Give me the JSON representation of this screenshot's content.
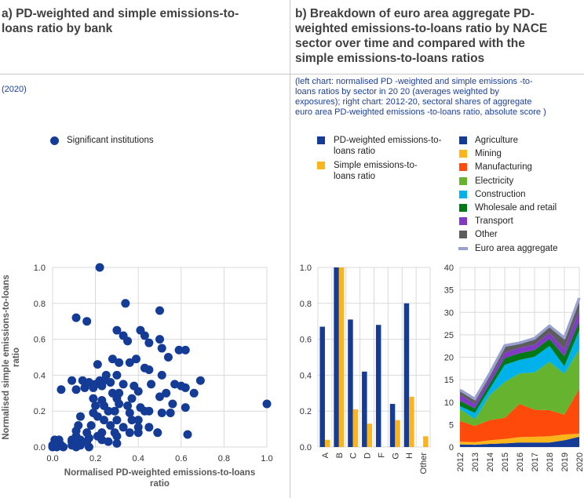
{
  "panel_a": {
    "title_line1": "a) PD-weighted and simple emissions-to-",
    "title_line2": "loans ratio by bank",
    "note": "(2020)"
  },
  "panel_b": {
    "title_line1": "b) Breakdown of euro area aggregate PD-",
    "title_line2": "weighted emissions-to-loans ratio by NACE",
    "title_line3": "sector over time and compared with the",
    "title_line4": "simple emissions-to-loans ratios",
    "note_line1": "(left chart: normalised PD -weighted and simple emissions -to-",
    "note_line2": "loans ratios by sector in 20 20 (averages weighted by",
    "note_line3": "exposures); right chart: 2012-20, sectoral shares of aggregate",
    "note_line4": "euro area PD-weighted emissions -to-loans ratio, absolute score )"
  },
  "colors": {
    "navy": "#143c96",
    "gold": "#fbb41a",
    "agriculture": "#143c96",
    "mining": "#fbb41a",
    "manufacturing": "#fe4b0c",
    "electricity": "#65b32e",
    "construction": "#00b1ea",
    "wholesale": "#007816",
    "transport": "#8139c6",
    "other": "#5c5c5c",
    "aggregate": "#98a1d0"
  },
  "chart_data": [
    {
      "type": "scatter",
      "xlabel_line1": "Normalised PD-weighted emissions-to-loans",
      "xlabel_line2": "ratio",
      "ylabel_line1": "Normalised simple emissions-to-loans",
      "ylabel_line2": "ratio",
      "xlim": [
        0,
        1
      ],
      "ylim": [
        0,
        1
      ],
      "xticks": [
        "0.0",
        "0.2",
        "0.4",
        "0.6",
        "0.8",
        "1.0"
      ],
      "yticks": [
        "0.0",
        "0.2",
        "0.4",
        "0.6",
        "0.8",
        "1.0"
      ],
      "grid": true,
      "legend": "top-left",
      "series": [
        {
          "name": "Significant institutions",
          "points": [
            [
              0.22,
              1.0
            ],
            [
              0.34,
              0.8
            ],
            [
              0.11,
              0.72
            ],
            [
              0.16,
              0.7
            ],
            [
              0.5,
              0.76
            ],
            [
              0.41,
              0.65
            ],
            [
              0.3,
              0.65
            ],
            [
              0.43,
              0.62
            ],
            [
              0.33,
              0.62
            ],
            [
              0.35,
              0.59
            ],
            [
              0.45,
              0.58
            ],
            [
              0.5,
              0.6
            ],
            [
              0.51,
              0.55
            ],
            [
              0.59,
              0.54
            ],
            [
              0.62,
              0.54
            ],
            [
              0.28,
              0.49
            ],
            [
              0.39,
              0.49
            ],
            [
              0.54,
              0.5
            ],
            [
              0.31,
              0.47
            ],
            [
              0.21,
              0.46
            ],
            [
              0.36,
              0.47
            ],
            [
              0.43,
              0.44
            ],
            [
              0.45,
              0.43
            ],
            [
              0.25,
              0.4
            ],
            [
              0.3,
              0.4
            ],
            [
              0.51,
              0.4
            ],
            [
              0.09,
              0.37
            ],
            [
              0.14,
              0.37
            ],
            [
              0.17,
              0.36
            ],
            [
              0.2,
              0.35
            ],
            [
              0.22,
              0.37
            ],
            [
              0.24,
              0.37
            ],
            [
              0.27,
              0.36
            ],
            [
              0.33,
              0.35
            ],
            [
              0.38,
              0.34
            ],
            [
              0.46,
              0.35
            ],
            [
              0.57,
              0.35
            ],
            [
              0.6,
              0.34
            ],
            [
              0.62,
              0.33
            ],
            [
              0.69,
              0.37
            ],
            [
              0.04,
              0.32
            ],
            [
              0.11,
              0.32
            ],
            [
              0.15,
              0.33
            ],
            [
              0.19,
              0.33
            ],
            [
              0.23,
              0.34
            ],
            [
              0.28,
              0.3
            ],
            [
              0.31,
              0.3
            ],
            [
              0.4,
              0.31
            ],
            [
              0.53,
              0.3
            ],
            [
              0.66,
              0.3
            ],
            [
              0.19,
              0.27
            ],
            [
              0.23,
              0.26
            ],
            [
              0.3,
              0.27
            ],
            [
              0.37,
              0.27
            ],
            [
              0.5,
              0.28
            ],
            [
              0.2,
              0.23
            ],
            [
              0.24,
              0.23
            ],
            [
              0.31,
              0.24
            ],
            [
              0.35,
              0.23
            ],
            [
              0.41,
              0.22
            ],
            [
              0.56,
              0.24
            ],
            [
              0.62,
              0.22
            ],
            [
              1.0,
              0.24
            ],
            [
              0.19,
              0.19
            ],
            [
              0.26,
              0.2
            ],
            [
              0.29,
              0.2
            ],
            [
              0.36,
              0.19
            ],
            [
              0.43,
              0.2
            ],
            [
              0.45,
              0.2
            ],
            [
              0.51,
              0.19
            ],
            [
              0.55,
              0.19
            ],
            [
              0.13,
              0.17
            ],
            [
              0.21,
              0.17
            ],
            [
              0.24,
              0.15
            ],
            [
              0.3,
              0.15
            ],
            [
              0.37,
              0.15
            ],
            [
              0.4,
              0.15
            ],
            [
              0.12,
              0.12
            ],
            [
              0.18,
              0.12
            ],
            [
              0.27,
              0.12
            ],
            [
              0.33,
              0.11
            ],
            [
              0.4,
              0.11
            ],
            [
              0.45,
              0.11
            ],
            [
              0.11,
              0.09
            ],
            [
              0.16,
              0.08
            ],
            [
              0.23,
              0.08
            ],
            [
              0.29,
              0.08
            ],
            [
              0.36,
              0.08
            ],
            [
              0.4,
              0.08
            ],
            [
              0.49,
              0.08
            ],
            [
              0.11,
              0.06
            ],
            [
              0.17,
              0.05
            ],
            [
              0.21,
              0.06
            ],
            [
              0.3,
              0.06
            ],
            [
              0.63,
              0.07
            ],
            [
              0.01,
              0.04
            ],
            [
              0.03,
              0.04
            ],
            [
              0.09,
              0.04
            ],
            [
              0.13,
              0.04
            ],
            [
              0.23,
              0.04
            ],
            [
              0.09,
              0.03
            ],
            [
              0.11,
              0.02
            ],
            [
              0.16,
              0.03
            ],
            [
              0.26,
              0.03
            ],
            [
              0.3,
              0.02
            ],
            [
              0.0,
              0.01
            ],
            [
              0.01,
              0.01
            ],
            [
              0.04,
              0.01
            ],
            [
              0.09,
              0.01
            ],
            [
              0.13,
              0.01
            ],
            [
              0.0,
              0.0
            ],
            [
              0.02,
              0.0
            ],
            [
              0.05,
              0.0
            ],
            [
              0.11,
              0.0
            ],
            [
              0.17,
              0.0
            ]
          ]
        }
      ]
    },
    {
      "type": "bar",
      "categories": [
        "A",
        "B",
        "C",
        "D",
        "F",
        "G",
        "H",
        "Other"
      ],
      "ylim": [
        0,
        1
      ],
      "yticks": [
        "0.0",
        "0.2",
        "0.4",
        "0.6",
        "0.8",
        "1.0"
      ],
      "grid": true,
      "legend": "top",
      "series": [
        {
          "name": "PD-weighted emissions-to-loans ratio",
          "color_key": "navy",
          "values": [
            0.67,
            1.0,
            0.71,
            0.42,
            0.68,
            0.24,
            0.8,
            0.0
          ]
        },
        {
          "name": "Simple emissions-to-loans ratio",
          "color_key": "gold",
          "values": [
            0.04,
            1.0,
            0.21,
            0.13,
            0.0,
            0.15,
            0.28,
            0.06
          ]
        }
      ]
    },
    {
      "type": "area",
      "stacked": true,
      "x": [
        "2012",
        "2013",
        "2014",
        "2015",
        "2016",
        "2017",
        "2018",
        "2019",
        "2020"
      ],
      "ylim": [
        0,
        40
      ],
      "yticks": [
        "0",
        "5",
        "10",
        "15",
        "20",
        "25",
        "30",
        "35",
        "40"
      ],
      "grid": true,
      "legend": "top",
      "series": [
        {
          "name": "Agriculture",
          "color_key": "agriculture",
          "values": [
            0.6,
            0.5,
            0.7,
            0.8,
            1.0,
            1.0,
            1.0,
            1.5,
            2.3
          ]
        },
        {
          "name": "Mining",
          "color_key": "mining",
          "values": [
            0.6,
            0.6,
            0.8,
            1.0,
            1.2,
            1.3,
            1.4,
            1.3,
            0.7
          ]
        },
        {
          "name": "Manufacturing",
          "color_key": "manufacturing",
          "values": [
            4.6,
            3.6,
            4.5,
            4.7,
            7.4,
            6.0,
            5.8,
            4.4,
            10.0
          ]
        },
        {
          "name": "Electricity",
          "color_key": "electricity",
          "values": [
            2.7,
            1.5,
            5.6,
            8.0,
            6.8,
            8.3,
            10.8,
            9.1,
            8.8
          ]
        },
        {
          "name": "Construction",
          "color_key": "construction",
          "values": [
            0.6,
            1.4,
            1.4,
            3.8,
            3.0,
            3.5,
            3.5,
            1.7,
            4.2
          ]
        },
        {
          "name": "Wholesale and retail",
          "color_key": "wholesale",
          "values": [
            1.2,
            1.0,
            1.2,
            1.5,
            1.5,
            1.5,
            1.6,
            2.2,
            2.0
          ]
        },
        {
          "name": "Transport",
          "color_key": "transport",
          "values": [
            1.3,
            1.0,
            1.2,
            1.2,
            1.2,
            1.2,
            1.3,
            1.6,
            2.5
          ]
        },
        {
          "name": "Other",
          "color_key": "other",
          "values": [
            1.1,
            1.1,
            1.0,
            1.6,
            1.1,
            1.4,
            1.6,
            2.5,
            2.7
          ]
        }
      ],
      "line_series": {
        "name": "Euro area aggregate",
        "color_key": "aggregate",
        "values": [
          12.7,
          10.7,
          16.4,
          22.6,
          23.2,
          24.2,
          27.0,
          24.3,
          33.2
        ]
      }
    }
  ]
}
